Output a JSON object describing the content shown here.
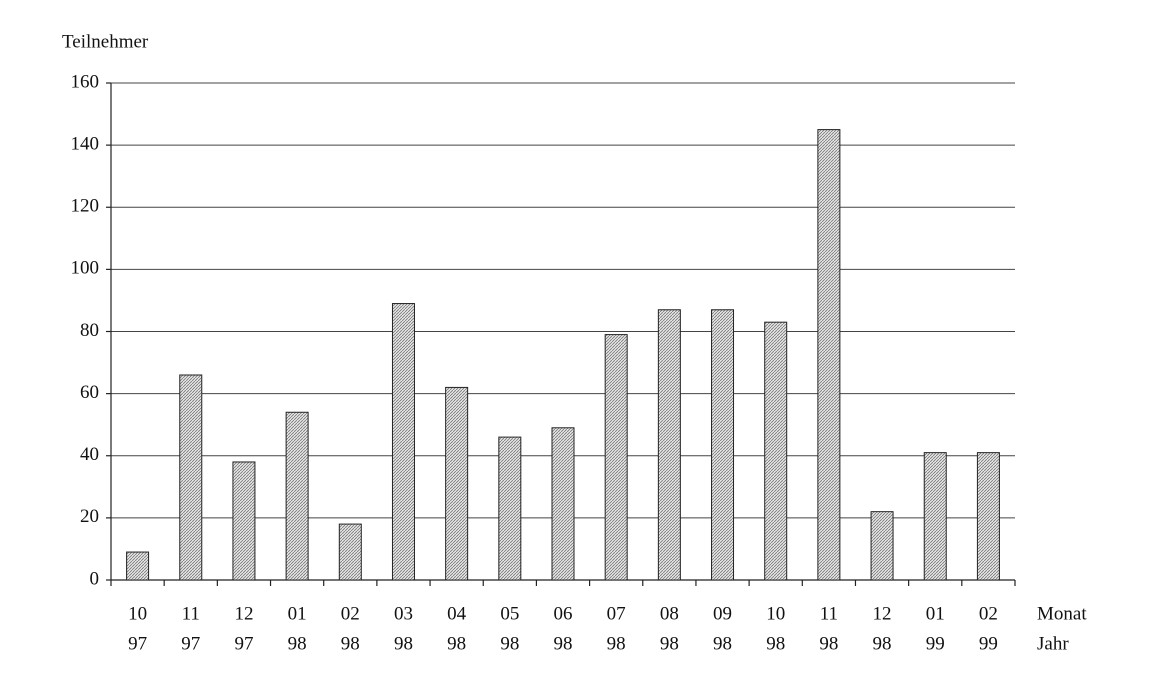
{
  "chart_data": {
    "type": "bar",
    "y_label": "Teilnehmer",
    "x_label_rows": [
      "Monat",
      "Jahr"
    ],
    "categories": [
      {
        "month": "10",
        "year": "97"
      },
      {
        "month": "11",
        "year": "97"
      },
      {
        "month": "12",
        "year": "97"
      },
      {
        "month": "01",
        "year": "98"
      },
      {
        "month": "02",
        "year": "98"
      },
      {
        "month": "03",
        "year": "98"
      },
      {
        "month": "04",
        "year": "98"
      },
      {
        "month": "05",
        "year": "98"
      },
      {
        "month": "06",
        "year": "98"
      },
      {
        "month": "07",
        "year": "98"
      },
      {
        "month": "08",
        "year": "98"
      },
      {
        "month": "09",
        "year": "98"
      },
      {
        "month": "10",
        "year": "98"
      },
      {
        "month": "11",
        "year": "98"
      },
      {
        "month": "12",
        "year": "98"
      },
      {
        "month": "01",
        "year": "99"
      },
      {
        "month": "02",
        "year": "99"
      }
    ],
    "values": [
      9,
      66,
      38,
      54,
      18,
      89,
      62,
      46,
      49,
      79,
      87,
      87,
      83,
      145,
      22,
      41,
      41
    ],
    "color": "#c4c4c4",
    "ylim": [
      0,
      160
    ],
    "yticks": [
      0,
      20,
      40,
      60,
      80,
      100,
      120,
      140,
      160
    ],
    "grid": true
  }
}
